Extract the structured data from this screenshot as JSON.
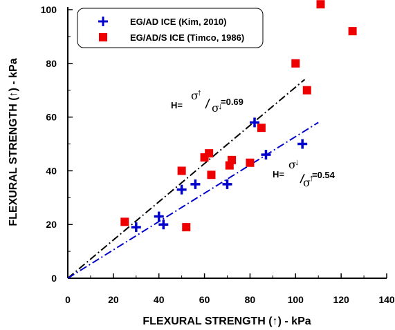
{
  "chart_data": {
    "type": "scatter",
    "xlabel": "FLEXURAL STRENGTH (↑) - kPa",
    "ylabel": "FLEXURAL STRENGTH (↑) - kPa",
    "xlim": [
      0,
      140
    ],
    "ylim": [
      0,
      100
    ],
    "x_ticks": [
      "0",
      "20",
      "40",
      "60",
      "80",
      "100",
      "120",
      "140"
    ],
    "y_ticks": [
      "0",
      "20",
      "40",
      "60",
      "80",
      "100"
    ],
    "grid": false,
    "legend_position": "top-left",
    "series": [
      {
        "name": "EG/AD ICE (Kim, 2010)",
        "marker": "plus",
        "color": "#0000cc",
        "points": [
          [
            30,
            19
          ],
          [
            40,
            23
          ],
          [
            42,
            20
          ],
          [
            50,
            33
          ],
          [
            56,
            35
          ],
          [
            70,
            35
          ],
          [
            82,
            58
          ],
          [
            87,
            46
          ],
          [
            103,
            50
          ]
        ]
      },
      {
        "name": "EG/AD/S ICE (Timco, 1986)",
        "marker": "square",
        "color": "#ee0000",
        "points": [
          [
            25,
            21
          ],
          [
            50,
            40
          ],
          [
            52,
            19
          ],
          [
            60,
            45
          ],
          [
            62,
            46.5
          ],
          [
            63,
            38.5
          ],
          [
            71,
            42
          ],
          [
            72,
            44
          ],
          [
            80,
            43
          ],
          [
            85,
            56
          ],
          [
            100,
            80
          ],
          [
            105,
            70
          ],
          [
            111,
            102
          ],
          [
            125,
            92
          ]
        ]
      }
    ],
    "fit_lines": [
      {
        "color": "#000000",
        "x": [
          0,
          104
        ],
        "y": [
          0,
          74
        ]
      },
      {
        "color": "#0000cc",
        "x": [
          0,
          110
        ],
        "y": [
          0,
          58
        ]
      }
    ],
    "annotations": [
      {
        "prefix": "H=",
        "top_sigma": "σ",
        "top_arrow": "↑",
        "bottom_sigma": "σ",
        "bottom_arrow": "↓",
        "value": "=0.69"
      },
      {
        "prefix": "H=",
        "top_sigma": "σ",
        "top_arrow": "↓",
        "bottom_sigma": "σ",
        "bottom_arrow": "↑",
        "value": "=0.54"
      }
    ]
  }
}
